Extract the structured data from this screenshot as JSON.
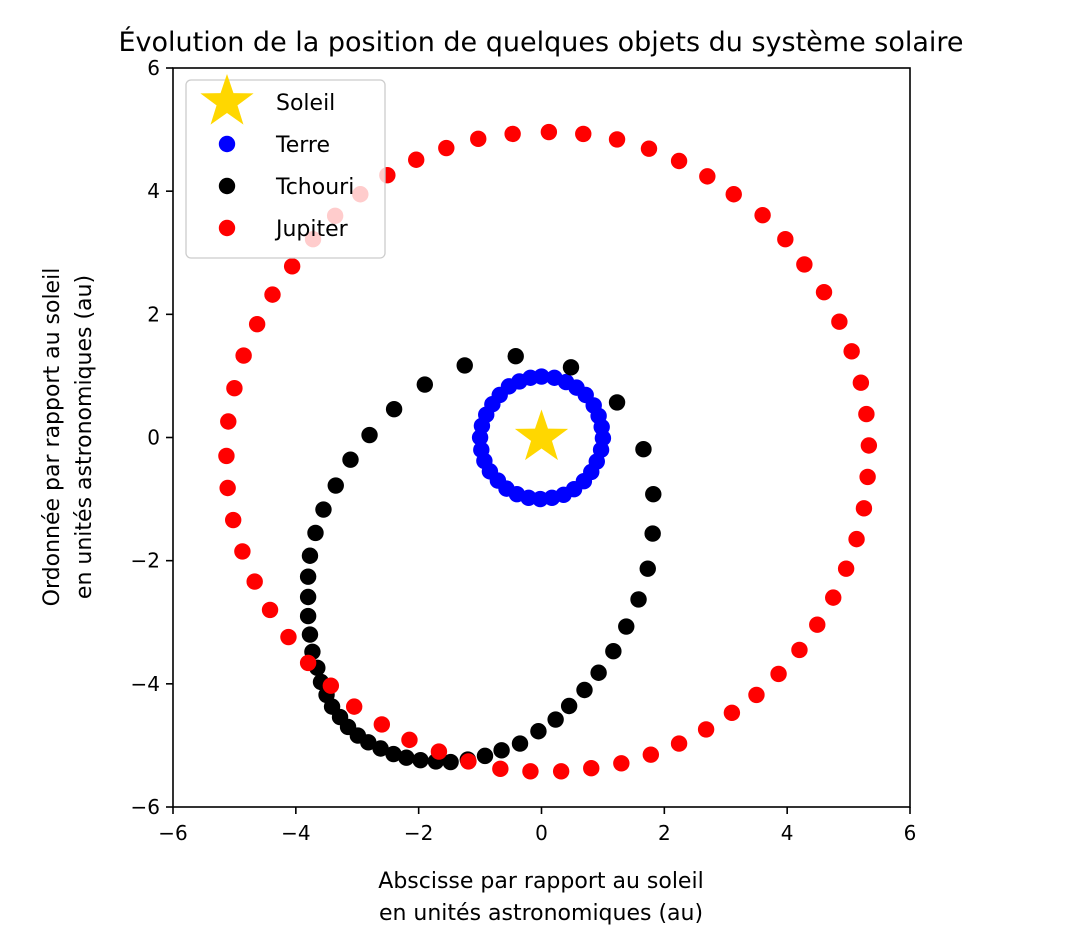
{
  "chart_data": {
    "type": "scatter",
    "title": "Évolution de la position de quelques objets du système solaire",
    "xlabel": [
      "Abscisse par rapport au soleil",
      "en unités astronomiques (au)"
    ],
    "ylabel": [
      "Ordonnée par rapport au soleil",
      "en unités astronomiques (au)"
    ],
    "xlim": [
      -6,
      6
    ],
    "ylim": [
      -6,
      6
    ],
    "xticks": [
      -6,
      -4,
      -2,
      0,
      2,
      4,
      6
    ],
    "yticks": [
      -6,
      -4,
      -2,
      0,
      2,
      4,
      6
    ],
    "xtick_labels": [
      "−6",
      "−4",
      "−2",
      "0",
      "2",
      "4",
      "6"
    ],
    "ytick_labels": [
      "−6",
      "−4",
      "−2",
      "0",
      "2",
      "4",
      "6"
    ],
    "grid": false,
    "legend": "top-left",
    "series": [
      {
        "name": "Soleil",
        "marker": "star",
        "color": "#ffd700",
        "points": [
          [
            0,
            0
          ]
        ]
      },
      {
        "name": "Terre",
        "marker": "circle",
        "color": "#0000ff",
        "points": [
          [
            0.0,
            0.99
          ],
          [
            0.21,
            0.97
          ],
          [
            0.4,
            0.9
          ],
          [
            0.57,
            0.81
          ],
          [
            0.72,
            0.69
          ],
          [
            0.85,
            0.52
          ],
          [
            0.93,
            0.35
          ],
          [
            0.98,
            0.17
          ],
          [
            1.0,
            -0.01
          ],
          [
            0.97,
            -0.2
          ],
          [
            0.9,
            -0.39
          ],
          [
            0.81,
            -0.56
          ],
          [
            0.69,
            -0.71
          ],
          [
            0.53,
            -0.84
          ],
          [
            0.36,
            -0.93
          ],
          [
            0.17,
            -0.98
          ],
          [
            -0.02,
            -1.0
          ],
          [
            -0.21,
            -0.98
          ],
          [
            -0.4,
            -0.92
          ],
          [
            -0.57,
            -0.83
          ],
          [
            -0.71,
            -0.7
          ],
          [
            -0.84,
            -0.55
          ],
          [
            -0.93,
            -0.38
          ],
          [
            -0.98,
            -0.2
          ],
          [
            -1.0,
            0.0
          ],
          [
            -0.97,
            0.19
          ],
          [
            -0.9,
            0.37
          ],
          [
            -0.8,
            0.54
          ],
          [
            -0.68,
            0.69
          ],
          [
            -0.53,
            0.83
          ],
          [
            -0.36,
            0.91
          ],
          [
            -0.18,
            0.97
          ]
        ]
      },
      {
        "name": "Tchouri",
        "marker": "circle",
        "color": "#000000",
        "points": [
          [
            1.23,
            0.57
          ],
          [
            0.48,
            1.14
          ],
          [
            -0.42,
            1.32
          ],
          [
            -1.25,
            1.17
          ],
          [
            -1.9,
            0.86
          ],
          [
            -2.4,
            0.46
          ],
          [
            -2.8,
            0.04
          ],
          [
            -3.11,
            -0.36
          ],
          [
            -3.35,
            -0.78
          ],
          [
            -3.55,
            -1.17
          ],
          [
            -3.68,
            -1.55
          ],
          [
            -3.77,
            -1.92
          ],
          [
            -3.8,
            -2.26
          ],
          [
            -3.8,
            -2.59
          ],
          [
            -3.8,
            -2.9
          ],
          [
            -3.77,
            -3.2
          ],
          [
            -3.73,
            -3.48
          ],
          [
            -3.65,
            -3.74
          ],
          [
            -3.59,
            -3.97
          ],
          [
            -3.5,
            -4.18
          ],
          [
            -3.41,
            -4.37
          ],
          [
            -3.28,
            -4.54
          ],
          [
            -3.15,
            -4.7
          ],
          [
            -2.99,
            -4.84
          ],
          [
            -2.82,
            -4.95
          ],
          [
            -2.62,
            -5.05
          ],
          [
            -2.41,
            -5.14
          ],
          [
            -2.2,
            -5.2
          ],
          [
            -1.97,
            -5.24
          ],
          [
            -1.72,
            -5.26
          ],
          [
            -1.48,
            -5.27
          ],
          [
            -1.2,
            -5.23
          ],
          [
            -0.92,
            -5.17
          ],
          [
            -0.65,
            -5.08
          ],
          [
            -0.35,
            -4.97
          ],
          [
            -0.05,
            -4.77
          ],
          [
            0.23,
            -4.58
          ],
          [
            0.45,
            -4.36
          ],
          [
            0.7,
            -4.1
          ],
          [
            0.93,
            -3.82
          ],
          [
            1.17,
            -3.47
          ],
          [
            1.38,
            -3.07
          ],
          [
            1.58,
            -2.63
          ],
          [
            1.73,
            -2.13
          ],
          [
            1.81,
            -1.56
          ],
          [
            1.82,
            -0.92
          ],
          [
            1.66,
            -0.19
          ]
        ]
      },
      {
        "name": "Jupiter",
        "marker": "circle",
        "color": "#ff0000",
        "points": [
          [
            0.12,
            4.96
          ],
          [
            0.68,
            4.93
          ],
          [
            1.23,
            4.84
          ],
          [
            1.75,
            4.69
          ],
          [
            2.24,
            4.49
          ],
          [
            2.7,
            4.24
          ],
          [
            3.13,
            3.95
          ],
          [
            3.6,
            3.61
          ],
          [
            3.97,
            3.22
          ],
          [
            4.28,
            2.81
          ],
          [
            4.6,
            2.36
          ],
          [
            4.85,
            1.88
          ],
          [
            5.05,
            1.4
          ],
          [
            5.2,
            0.89
          ],
          [
            5.29,
            0.38
          ],
          [
            5.33,
            -0.13
          ],
          [
            5.31,
            -0.64
          ],
          [
            5.25,
            -1.15
          ],
          [
            5.13,
            -1.65
          ],
          [
            4.96,
            -2.13
          ],
          [
            4.75,
            -2.6
          ],
          [
            4.49,
            -3.04
          ],
          [
            4.2,
            -3.45
          ],
          [
            3.86,
            -3.84
          ],
          [
            3.5,
            -4.18
          ],
          [
            3.1,
            -4.47
          ],
          [
            2.68,
            -4.74
          ],
          [
            2.24,
            -4.97
          ],
          [
            1.78,
            -5.15
          ],
          [
            1.3,
            -5.29
          ],
          [
            0.81,
            -5.37
          ],
          [
            0.32,
            -5.42
          ],
          [
            -0.18,
            -5.42
          ],
          [
            -0.67,
            -5.38
          ],
          [
            -1.19,
            -5.26
          ],
          [
            -1.67,
            -5.1
          ],
          [
            -2.15,
            -4.91
          ],
          [
            -2.6,
            -4.66
          ],
          [
            -3.05,
            -4.37
          ],
          [
            -3.43,
            -4.03
          ],
          [
            -3.8,
            -3.66
          ],
          [
            -4.12,
            -3.24
          ],
          [
            -4.42,
            -2.8
          ],
          [
            -4.67,
            -2.34
          ],
          [
            -4.87,
            -1.85
          ],
          [
            -5.02,
            -1.34
          ],
          [
            -5.11,
            -0.82
          ],
          [
            -5.13,
            -0.3
          ],
          [
            -5.1,
            0.26
          ],
          [
            -5.0,
            0.8
          ],
          [
            -4.85,
            1.33
          ],
          [
            -4.63,
            1.84
          ],
          [
            -4.38,
            2.32
          ],
          [
            -4.06,
            2.78
          ],
          [
            -3.72,
            3.22
          ],
          [
            -3.36,
            3.6
          ],
          [
            -2.95,
            3.95
          ],
          [
            -2.51,
            4.26
          ],
          [
            -2.04,
            4.51
          ],
          [
            -1.55,
            4.7
          ],
          [
            -1.03,
            4.85
          ],
          [
            -0.47,
            4.93
          ]
        ]
      }
    ]
  }
}
